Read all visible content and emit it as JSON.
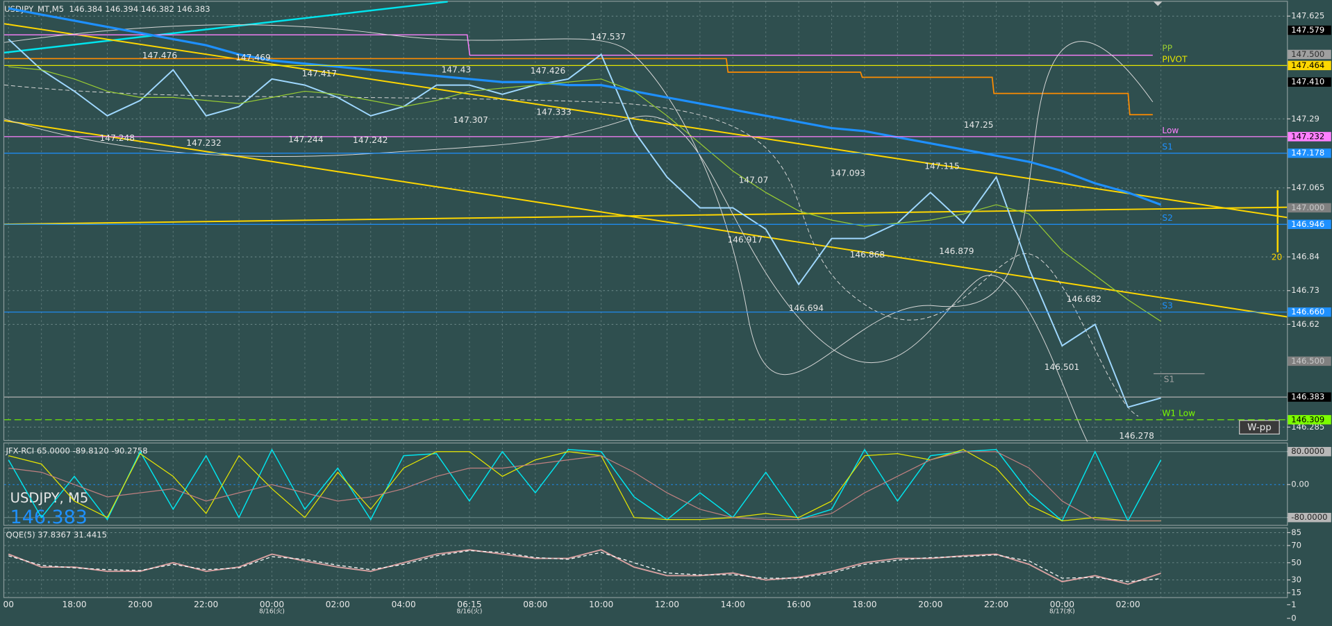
{
  "chart_data": [
    {
      "type": "line",
      "title": "USDJPY_MT,M5  146.384 146.394 146.382 146.383",
      "watermark": {
        "symbol": "USDJPY, M5",
        "price": "146.383"
      },
      "notes": [
        "S1",
        "W-pp",
        "20"
      ],
      "categories": [
        "00",
        null,
        "18:00",
        null,
        "20:00",
        null,
        "22:00",
        null,
        "00:00",
        null,
        "02:00",
        null,
        "04:00",
        null,
        "06:15",
        null,
        "08:00",
        null,
        "10:00",
        null,
        "12:00",
        null,
        "14:00",
        null,
        "16:00",
        null,
        "18:00",
        null,
        "20:00",
        null,
        "22:00",
        null,
        "00:00",
        null,
        "02:00",
        null
      ],
      "date_labels": [
        null,
        null,
        null,
        null,
        null,
        null,
        null,
        null,
        "8/16(火)",
        null,
        null,
        null,
        null,
        null,
        "8/16(火)",
        null,
        null,
        null,
        null,
        null,
        null,
        null,
        null,
        null,
        null,
        null,
        null,
        null,
        null,
        null,
        null,
        null,
        "8/17(水)",
        null,
        null,
        null
      ],
      "ylim": [
        146.243,
        147.672
      ],
      "yticks": [
        147.625,
        147.29,
        147.065,
        146.84,
        146.73,
        146.62,
        146.285
      ],
      "grid": true,
      "series": [
        {
          "color": "#9fd8ff",
          "width": 1.6,
          "values": [
            147.55,
            147.45,
            147.38,
            147.3,
            147.35,
            147.45,
            147.3,
            147.33,
            147.42,
            147.4,
            147.36,
            147.3,
            147.33,
            147.4,
            147.4,
            147.37,
            147.4,
            147.42,
            147.5,
            147.25,
            147.1,
            147.0,
            147.0,
            146.93,
            146.75,
            146.9,
            146.9,
            146.95,
            147.05,
            146.95,
            147.1,
            146.8,
            146.55,
            146.62,
            146.35,
            146.38
          ]
        },
        {
          "color": "#1e90ff",
          "width": 2.6,
          "values": [
            147.65,
            147.63,
            147.61,
            147.59,
            147.57,
            147.55,
            147.53,
            147.5,
            147.48,
            147.47,
            147.46,
            147.45,
            147.44,
            147.43,
            147.42,
            147.41,
            147.41,
            147.4,
            147.4,
            147.38,
            147.36,
            147.34,
            147.32,
            147.3,
            147.28,
            147.26,
            147.25,
            147.23,
            147.21,
            147.19,
            147.17,
            147.15,
            147.12,
            147.08,
            147.05,
            147.01
          ]
        },
        {
          "color": "#9acd32",
          "width": 1,
          "values": [
            147.46,
            147.45,
            147.42,
            147.38,
            147.36,
            147.36,
            147.35,
            147.34,
            147.36,
            147.38,
            147.37,
            147.35,
            147.33,
            147.35,
            147.38,
            147.39,
            147.4,
            147.41,
            147.42,
            147.38,
            147.3,
            147.21,
            147.12,
            147.05,
            146.99,
            146.96,
            146.94,
            146.95,
            146.96,
            146.98,
            147.01,
            146.98,
            146.86,
            146.78,
            146.7,
            146.63
          ]
        }
      ],
      "high_labels": [
        147.537,
        147.476,
        147.469,
        147.417,
        147.43,
        147.426,
        147.07,
        147.093,
        147.115,
        147.25,
        146.682
      ],
      "low_labels": [
        147.248,
        147.232,
        147.244,
        147.242,
        147.307,
        147.333,
        146.917,
        146.868,
        146.879,
        146.694,
        146.501,
        146.278
      ],
      "levels": [
        {
          "value": 147.579,
          "tag_color": "#000000",
          "text_color": "#ffffff"
        },
        {
          "value": 147.5,
          "label": "147.500",
          "name": "PP",
          "name_color": "#9acd32",
          "tag_color": "#a0a0a0",
          "text_color": "#303030"
        },
        {
          "value": 147.464,
          "name": "PIVOT",
          "name_color": "#e6e600",
          "line_color": "#e6e600",
          "tag_color": "#ffd700",
          "text_color": "#000000"
        },
        {
          "value": 147.41,
          "label": "147.410",
          "tag_color": "#000000",
          "text_color": "#ffffff"
        },
        {
          "value": 147.232,
          "name": "Low",
          "name_color": "#ff80ff",
          "line_color": "#ff80ff",
          "tag_color": "#ff80ff",
          "text_color": "#000000"
        },
        {
          "value": 147.178,
          "name": "S1",
          "name_color": "#1e90ff",
          "line_color": "#1e90ff",
          "tag_color": "#1e90ff",
          "text_color": "#ffffff"
        },
        {
          "value": 147.0,
          "label": "147.000",
          "tag_color": "#808080",
          "text_color": "#c8c8c8"
        },
        {
          "value": 146.946,
          "name": "S2",
          "name_color": "#1e90ff",
          "line_color": "#1e90ff",
          "tag_color": "#1e90ff",
          "text_color": "#ffffff"
        },
        {
          "value": 146.66,
          "label": "146.660",
          "name": "S3",
          "name_color": "#1e90ff",
          "line_color": "#1e90ff",
          "tag_color": "#1e90ff",
          "text_color": "#ffffff"
        },
        {
          "value": 146.5,
          "label": "146.500",
          "tag_color": "#808080",
          "text_color": "#c8c8c8"
        },
        {
          "value": 146.383,
          "line_color": "#b0b0b0",
          "tag_color": "#000000",
          "text_color": "#ffffff"
        },
        {
          "value": 146.309,
          "name": "W1 Low",
          "name_color": "#7cfc00",
          "line_color": "#7cfc00",
          "dash": true,
          "tag_color": "#7cfc00",
          "text_color": "#000000"
        }
      ]
    },
    {
      "type": "line",
      "title": "JFX-RCI 65.0000 -89.8120 -90.2758",
      "ylim": [
        -100,
        100
      ],
      "yticks": [
        {
          "value": 80,
          "label": "80.0000"
        },
        {
          "value": 0,
          "label": "0.00"
        },
        {
          "value": -80,
          "label": "-80.0000"
        }
      ],
      "grid": true,
      "series": [
        {
          "color": "#00e5ee",
          "width": 1.2,
          "values": [
            60,
            -80,
            20,
            -85,
            80,
            -60,
            70,
            -80,
            85,
            -60,
            40,
            -85,
            70,
            75,
            -40,
            80,
            -20,
            85,
            80,
            -30,
            -85,
            -20,
            -80,
            30,
            -85,
            -60,
            85,
            -40,
            70,
            80,
            85,
            -20,
            -88,
            80,
            -88,
            60
          ]
        },
        {
          "color": "#e6e600",
          "width": 1,
          "values": [
            70,
            50,
            -40,
            -80,
            75,
            20,
            -70,
            70,
            -10,
            -80,
            30,
            -60,
            40,
            80,
            80,
            20,
            60,
            80,
            70,
            -80,
            -85,
            -85,
            -80,
            -70,
            -80,
            -40,
            70,
            75,
            60,
            85,
            40,
            -50,
            -88,
            -80,
            -88,
            -88
          ]
        },
        {
          "color": "#c08080",
          "width": 1,
          "values": [
            40,
            30,
            0,
            -30,
            -20,
            -10,
            -40,
            -20,
            0,
            -20,
            -40,
            -30,
            -10,
            20,
            40,
            40,
            50,
            60,
            70,
            30,
            -20,
            -60,
            -80,
            -85,
            -85,
            -70,
            -20,
            20,
            60,
            80,
            80,
            40,
            -40,
            -85,
            -88,
            -88
          ]
        }
      ]
    },
    {
      "type": "line",
      "title": "QQE(5) 37.8367 31.4415",
      "ylim": [
        10,
        90
      ],
      "yticks": [
        85,
        70,
        50,
        30,
        15
      ],
      "grid": true,
      "series": [
        {
          "color": "#d8a0a0",
          "width": 1.6,
          "values": [
            60,
            45,
            45,
            40,
            40,
            50,
            40,
            45,
            60,
            52,
            45,
            40,
            50,
            60,
            65,
            60,
            55,
            55,
            65,
            45,
            35,
            35,
            38,
            30,
            33,
            40,
            50,
            55,
            55,
            58,
            60,
            48,
            28,
            35,
            25,
            37.8
          ]
        },
        {
          "color": "#ffffff",
          "width": 1,
          "dash": true,
          "values": [
            58,
            47,
            44,
            42,
            41,
            48,
            42,
            44,
            57,
            54,
            47,
            42,
            48,
            58,
            64,
            62,
            56,
            54,
            62,
            50,
            38,
            36,
            36,
            32,
            32,
            38,
            48,
            53,
            56,
            57,
            59,
            52,
            32,
            33,
            28,
            31.4
          ]
        }
      ]
    },
    {
      "type": "volume",
      "ylim": [
        0,
        1
      ],
      "yticks": [
        1,
        0
      ]
    }
  ]
}
